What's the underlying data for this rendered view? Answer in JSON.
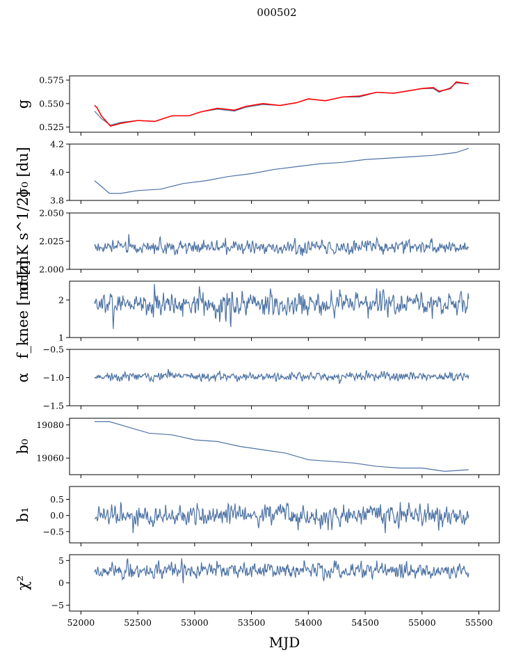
{
  "figure_title": "000502",
  "colors": {
    "series": "#4c72a4",
    "overlay": "#ff0000",
    "axis": "#000000"
  },
  "chart_data": {
    "type": "line",
    "title": "000502",
    "xlabel": "MJD",
    "xlim": [
      51900,
      55680
    ],
    "xticks": [
      52000,
      52500,
      53000,
      53500,
      54000,
      54500,
      55000,
      55500
    ],
    "xtick_labels": [
      "52000",
      "52500",
      "53000",
      "53500",
      "54000",
      "54500",
      "55000",
      "55500"
    ],
    "data_range": [
      52120,
      55410
    ],
    "panels": [
      {
        "id": "g",
        "ylabel": "g",
        "ylim": [
          0.5195,
          0.5795
        ],
        "yticks": [
          0.525,
          0.55,
          0.575
        ],
        "ytick_labels": [
          "0.525",
          "0.550",
          "0.575"
        ],
        "series": [
          {
            "name": "g",
            "color": "#4c72a4",
            "points": [
              [
                52120,
                0.542
              ],
              [
                52180,
                0.534
              ],
              [
                52260,
                0.527
              ],
              [
                52350,
                0.53
              ],
              [
                52500,
                0.532
              ],
              [
                52650,
                0.531
              ],
              [
                52800,
                0.537
              ],
              [
                52950,
                0.537
              ],
              [
                53050,
                0.541
              ],
              [
                53200,
                0.544
              ],
              [
                53350,
                0.542
              ],
              [
                53450,
                0.546
              ],
              [
                53600,
                0.549
              ],
              [
                53750,
                0.548
              ],
              [
                53900,
                0.551
              ],
              [
                54000,
                0.555
              ],
              [
                54150,
                0.553
              ],
              [
                54300,
                0.557
              ],
              [
                54450,
                0.557
              ],
              [
                54600,
                0.562
              ],
              [
                54750,
                0.561
              ],
              [
                54850,
                0.563
              ],
              [
                55000,
                0.566
              ],
              [
                55100,
                0.566
              ],
              [
                55150,
                0.562
              ],
              [
                55250,
                0.567
              ],
              [
                55300,
                0.572
              ],
              [
                55410,
                0.571
              ]
            ]
          },
          {
            "name": "g fit",
            "color": "#ff0000",
            "points": [
              [
                52120,
                0.548
              ],
              [
                52140,
                0.546
              ],
              [
                52180,
                0.537
              ],
              [
                52260,
                0.526
              ],
              [
                52350,
                0.529
              ],
              [
                52500,
                0.532
              ],
              [
                52650,
                0.531
              ],
              [
                52800,
                0.537
              ],
              [
                52950,
                0.537
              ],
              [
                53050,
                0.541
              ],
              [
                53200,
                0.545
              ],
              [
                53350,
                0.543
              ],
              [
                53450,
                0.547
              ],
              [
                53600,
                0.55
              ],
              [
                53750,
                0.548
              ],
              [
                53900,
                0.551
              ],
              [
                54000,
                0.555
              ],
              [
                54150,
                0.553
              ],
              [
                54300,
                0.557
              ],
              [
                54450,
                0.558
              ],
              [
                54600,
                0.562
              ],
              [
                54750,
                0.561
              ],
              [
                54850,
                0.563
              ],
              [
                55000,
                0.566
              ],
              [
                55100,
                0.567
              ],
              [
                55150,
                0.563
              ],
              [
                55250,
                0.566
              ],
              [
                55300,
                0.573
              ],
              [
                55410,
                0.571
              ]
            ]
          }
        ]
      },
      {
        "id": "sigma0_du",
        "ylabel": "σ₀ [du]",
        "ylim": [
          3.8,
          4.2
        ],
        "yticks": [
          3.8,
          4.0,
          4.2
        ],
        "ytick_labels": [
          "3.8",
          "4.0",
          "4.2"
        ],
        "series": [
          {
            "name": "sigma0_du",
            "color": "#4c72a4",
            "points": [
              [
                52120,
                3.94
              ],
              [
                52180,
                3.9
              ],
              [
                52250,
                3.85
              ],
              [
                52350,
                3.85
              ],
              [
                52500,
                3.87
              ],
              [
                52700,
                3.88
              ],
              [
                52900,
                3.92
              ],
              [
                53100,
                3.94
              ],
              [
                53300,
                3.97
              ],
              [
                53500,
                3.99
              ],
              [
                53700,
                4.02
              ],
              [
                53900,
                4.04
              ],
              [
                54100,
                4.06
              ],
              [
                54300,
                4.07
              ],
              [
                54500,
                4.09
              ],
              [
                54700,
                4.1
              ],
              [
                54900,
                4.11
              ],
              [
                55100,
                4.12
              ],
              [
                55300,
                4.14
              ],
              [
                55410,
                4.17
              ]
            ]
          }
        ]
      },
      {
        "id": "sigma0_mk",
        "ylabel": "σ₀[mK s^1/2]",
        "ylim": [
          2.0,
          2.05
        ],
        "yticks": [
          2.0,
          2.025,
          2.05
        ],
        "ytick_labels": [
          "2.000",
          "2.025",
          "2.050"
        ],
        "series": [
          {
            "name": "sigma0_mk",
            "color": "#4c72a4",
            "noise": {
              "base": 2.02,
              "amp": 0.004,
              "spike": 0.008,
              "seed": 3
            }
          }
        ]
      },
      {
        "id": "fknee",
        "ylabel": "f_knee [mHz]",
        "ylim": [
          1,
          2.5
        ],
        "yticks": [
          1,
          2
        ],
        "ytick_labels": [
          "1",
          "2"
        ],
        "series": [
          {
            "name": "fknee",
            "color": "#4c72a4",
            "noise": {
              "base": 1.9,
              "amp": 0.22,
              "spike": 0.5,
              "seed": 7
            }
          }
        ]
      },
      {
        "id": "alpha",
        "ylabel": "α",
        "ylim": [
          -1.5,
          -0.5
        ],
        "yticks": [
          -1.5,
          -1.0,
          -0.5
        ],
        "ytick_labels": [
          "−1.5",
          "−1.0",
          "−0.5"
        ],
        "series": [
          {
            "name": "alpha",
            "color": "#4c72a4",
            "noise": {
              "base": -0.98,
              "amp": 0.05,
              "spike": 0.08,
              "seed": 11
            }
          }
        ]
      },
      {
        "id": "b0",
        "ylabel": "b₀",
        "ylim": [
          19050,
          19084
        ],
        "yticks": [
          19060,
          19080
        ],
        "ytick_labels": [
          "19060",
          "19080"
        ],
        "series": [
          {
            "name": "b0",
            "color": "#4c72a4",
            "points": [
              [
                52120,
                19082
              ],
              [
                52250,
                19082
              ],
              [
                52400,
                19079
              ],
              [
                52600,
                19075
              ],
              [
                52800,
                19074
              ],
              [
                53000,
                19071
              ],
              [
                53200,
                19070
              ],
              [
                53400,
                19067
              ],
              [
                53600,
                19065
              ],
              [
                53800,
                19063
              ],
              [
                54000,
                19059
              ],
              [
                54200,
                19058
              ],
              [
                54400,
                19057
              ],
              [
                54600,
                19055
              ],
              [
                54800,
                19054
              ],
              [
                55000,
                19054
              ],
              [
                55100,
                19053
              ],
              [
                55200,
                19052
              ],
              [
                55410,
                19053
              ]
            ]
          }
        ]
      },
      {
        "id": "b1",
        "ylabel": "b₁",
        "ylim": [
          -0.85,
          0.9
        ],
        "yticks": [
          -0.5,
          0.0,
          0.5
        ],
        "ytick_labels": [
          "−0.5",
          "0.0",
          "0.5"
        ],
        "series": [
          {
            "name": "b1",
            "color": "#4c72a4",
            "noise": {
              "base": 0.0,
              "amp": 0.22,
              "spike": 0.45,
              "seed": 19
            }
          }
        ]
      },
      {
        "id": "chi2",
        "ylabel": "χ²",
        "ylim": [
          -6.3,
          6.3
        ],
        "yticks": [
          -5,
          0,
          5
        ],
        "ytick_labels": [
          "−5",
          "0",
          "5"
        ],
        "series": [
          {
            "name": "chi2",
            "color": "#4c72a4",
            "noise": {
              "base": 2.8,
              "amp": 1.2,
              "spike": 2.2,
              "seed": 23
            }
          }
        ]
      }
    ]
  }
}
